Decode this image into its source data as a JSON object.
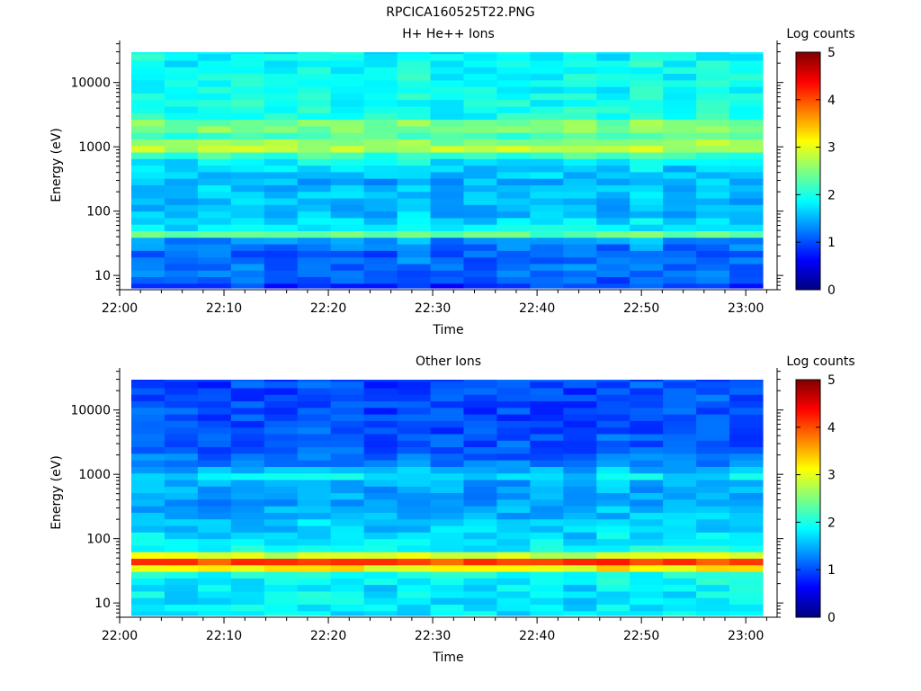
{
  "page": {
    "title": "RPCICA160525T22.PNG"
  },
  "chart_data": [
    {
      "type": "heatmap",
      "title": "H+ He++ Ions",
      "xlabel": "Time",
      "ylabel": "Energy (eV)",
      "colorbar_label": "Log counts",
      "y_scale": "log",
      "ylim": [
        6,
        45000
      ],
      "x_ticks": [
        "22:00",
        "22:10",
        "22:20",
        "22:30",
        "22:40",
        "22:50",
        "23:00"
      ],
      "y_ticks": [
        10,
        100,
        1000,
        10000
      ],
      "colorbar_ticks": [
        0,
        1,
        2,
        3,
        4,
        5
      ],
      "colorbar_range": [
        0,
        5
      ],
      "colormap": "jet",
      "x_start": "22:01",
      "x_end": "23:02",
      "time_bins": 19,
      "energy_profile": [
        {
          "energy": 7,
          "value": 0.9
        },
        {
          "energy": 10,
          "value": 1.1
        },
        {
          "energy": 15,
          "value": 1.2
        },
        {
          "energy": 22,
          "value": 1.1
        },
        {
          "energy": 30,
          "value": 1.3
        },
        {
          "energy": 38,
          "value": 1.4
        },
        {
          "energy": 45,
          "value": 2.4
        },
        {
          "energy": 55,
          "value": 1.8
        },
        {
          "energy": 80,
          "value": 1.6
        },
        {
          "energy": 120,
          "value": 1.5
        },
        {
          "energy": 200,
          "value": 1.6
        },
        {
          "energy": 300,
          "value": 1.5
        },
        {
          "energy": 500,
          "value": 1.7
        },
        {
          "energy": 700,
          "value": 2.0
        },
        {
          "energy": 1000,
          "value": 3.0
        },
        {
          "energy": 1400,
          "value": 2.2
        },
        {
          "energy": 2200,
          "value": 2.6
        },
        {
          "energy": 3000,
          "value": 2.0
        },
        {
          "energy": 6000,
          "value": 1.9
        },
        {
          "energy": 15000,
          "value": 1.9
        },
        {
          "energy": 45000,
          "value": 1.9
        }
      ]
    },
    {
      "type": "heatmap",
      "title": "Other Ions",
      "xlabel": "Time",
      "ylabel": "Energy (eV)",
      "colorbar_label": "Log counts",
      "y_scale": "log",
      "ylim": [
        6,
        45000
      ],
      "x_ticks": [
        "22:00",
        "22:10",
        "22:20",
        "22:30",
        "22:40",
        "22:50",
        "23:00"
      ],
      "y_ticks": [
        10,
        100,
        1000,
        10000
      ],
      "colorbar_ticks": [
        0,
        1,
        2,
        3,
        4,
        5
      ],
      "colorbar_range": [
        0,
        5
      ],
      "colormap": "jet",
      "x_start": "22:01",
      "x_end": "23:02",
      "time_bins": 19,
      "energy_profile": [
        {
          "energy": 7,
          "value": 1.8
        },
        {
          "energy": 12,
          "value": 1.8
        },
        {
          "energy": 20,
          "value": 1.8
        },
        {
          "energy": 30,
          "value": 2.0
        },
        {
          "energy": 35,
          "value": 3.2
        },
        {
          "energy": 40,
          "value": 3.9
        },
        {
          "energy": 48,
          "value": 4.2
        },
        {
          "energy": 55,
          "value": 3.0
        },
        {
          "energy": 70,
          "value": 1.9
        },
        {
          "energy": 120,
          "value": 1.7
        },
        {
          "energy": 250,
          "value": 1.5
        },
        {
          "energy": 500,
          "value": 1.4
        },
        {
          "energy": 800,
          "value": 1.5
        },
        {
          "energy": 1000,
          "value": 1.9
        },
        {
          "energy": 1300,
          "value": 1.3
        },
        {
          "energy": 2500,
          "value": 1.1
        },
        {
          "energy": 5000,
          "value": 1.0
        },
        {
          "energy": 10000,
          "value": 1.0
        },
        {
          "energy": 20000,
          "value": 1.0
        },
        {
          "energy": 45000,
          "value": 1.0
        }
      ]
    }
  ]
}
